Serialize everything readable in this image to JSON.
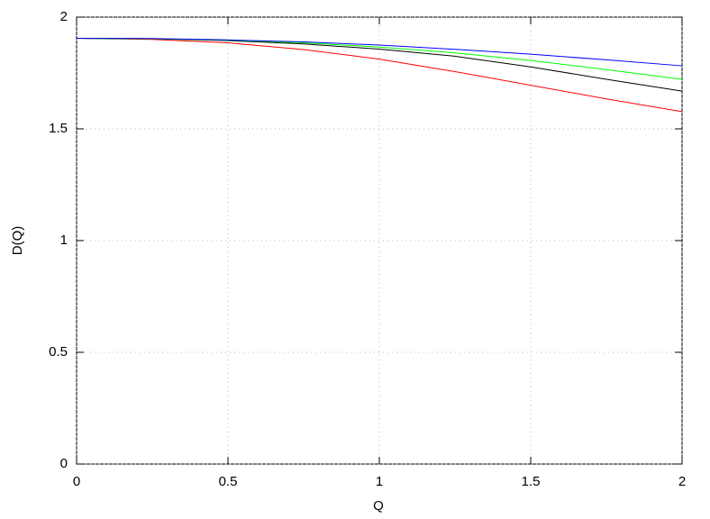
{
  "chart_data": {
    "type": "line",
    "x": [
      0,
      0.25,
      0.5,
      0.75,
      1,
      1.25,
      1.5,
      1.75,
      2
    ],
    "series": [
      {
        "color": "#ff0000",
        "values": [
          1.905,
          1.9,
          1.885,
          1.855,
          1.812,
          1.756,
          1.695,
          1.634,
          1.577
        ]
      },
      {
        "color": "#000000",
        "values": [
          1.905,
          1.903,
          1.895,
          1.88,
          1.857,
          1.825,
          1.777,
          1.722,
          1.669
        ]
      },
      {
        "color": "#00ff00",
        "values": [
          1.905,
          1.903,
          1.897,
          1.885,
          1.866,
          1.84,
          1.806,
          1.765,
          1.722
        ]
      },
      {
        "color": "#0000ff",
        "values": [
          1.905,
          1.904,
          1.898,
          1.889,
          1.875,
          1.856,
          1.834,
          1.809,
          1.782
        ]
      }
    ],
    "xlabel": "Q",
    "ylabel": "D(Q)",
    "xlim": [
      0,
      2
    ],
    "ylim": [
      0,
      2
    ],
    "xticks": [
      0,
      0.5,
      1,
      1.5,
      2
    ],
    "yticks": [
      0,
      0.5,
      1,
      1.5,
      2
    ],
    "grid": true
  }
}
